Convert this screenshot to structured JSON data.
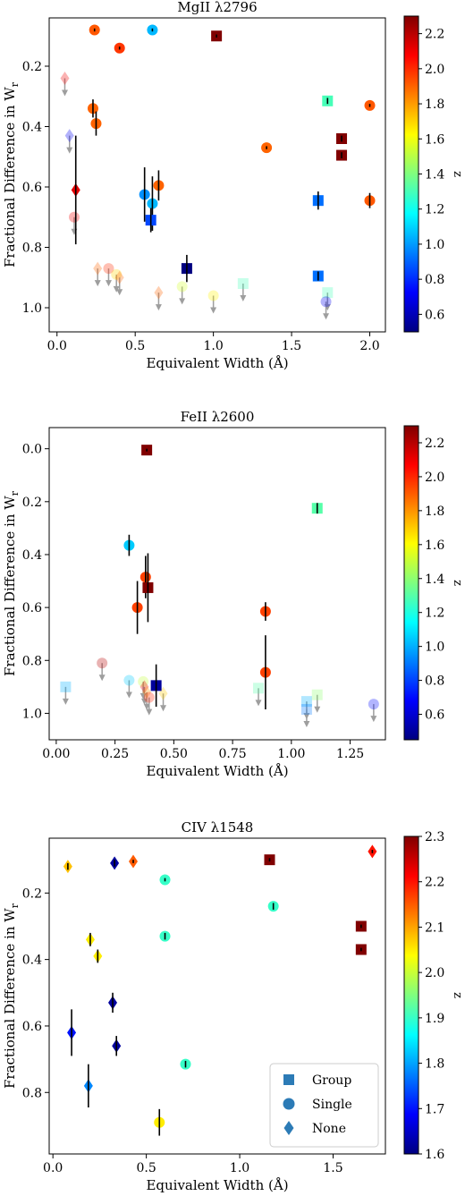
{
  "colors": {
    "grey_arrow": "#9e9e9e",
    "errorbar": "#000000",
    "legend_marker": "#2c7bb6",
    "colormap_jet": [
      "#000080",
      "#0000ff",
      "#007fff",
      "#00ffff",
      "#7fff7f",
      "#ffff00",
      "#ff7f00",
      "#ff0000",
      "#800000"
    ]
  },
  "legend": {
    "items": [
      {
        "marker": "square",
        "label": "Group"
      },
      {
        "marker": "circle",
        "label": "Single"
      },
      {
        "marker": "diamond",
        "label": "None"
      }
    ],
    "placement": "lower-right"
  },
  "chart_data": [
    {
      "type": "scatter",
      "title": "MgII λ2796",
      "xlabel": "Equivalent Width (Å)",
      "ylabel": "Fractional Difference in W_r",
      "xlim": [
        -0.05,
        2.1
      ],
      "ylim": [
        1.08,
        0.04
      ],
      "y_inverted": true,
      "xticks": [
        "0.0",
        "0.5",
        "1.0",
        "1.5",
        "2.0"
      ],
      "xtick_values": [
        0,
        0.5,
        1,
        1.5,
        2
      ],
      "yticks": [
        "0.2",
        "0.4",
        "0.6",
        "0.8",
        "1.0"
      ],
      "ytick_values": [
        0.2,
        0.4,
        0.6,
        0.8,
        1.0
      ],
      "colorbar": {
        "label": "z",
        "range": [
          0.5,
          2.3
        ],
        "ticks": [
          "0.6",
          "0.8",
          "1.0",
          "1.2",
          "1.4",
          "1.6",
          "1.8",
          "2.0",
          "2.2"
        ],
        "tick_values": [
          0.6,
          0.8,
          1.0,
          1.2,
          1.4,
          1.6,
          1.8,
          2.0,
          2.2
        ]
      },
      "grid": false,
      "points": [
        {
          "x": 0.24,
          "y": 0.08,
          "z": 1.92,
          "marker": "circle",
          "err": 0.005
        },
        {
          "x": 0.61,
          "y": 0.08,
          "z": 1.05,
          "marker": "circle",
          "err": 0.005
        },
        {
          "x": 0.4,
          "y": 0.14,
          "z": 1.98,
          "marker": "circle",
          "err": 0.005
        },
        {
          "x": 1.02,
          "y": 0.1,
          "z": 2.3,
          "marker": "square",
          "err": 0.005
        },
        {
          "x": 0.23,
          "y": 0.34,
          "z": 1.9,
          "marker": "circle",
          "err": 0.03
        },
        {
          "x": 0.25,
          "y": 0.39,
          "z": 1.9,
          "marker": "circle",
          "err": 0.04
        },
        {
          "x": 0.12,
          "y": 0.61,
          "z": 2.12,
          "marker": "diamond",
          "err": 0.18
        },
        {
          "x": 0.56,
          "y": 0.625,
          "z": 0.98,
          "marker": "circle",
          "err": 0.09
        },
        {
          "x": 0.61,
          "y": 0.655,
          "z": 1.05,
          "marker": "circle",
          "err": 0.09
        },
        {
          "x": 0.65,
          "y": 0.595,
          "z": 1.9,
          "marker": "circle",
          "err": 0.05
        },
        {
          "x": 0.6,
          "y": 0.71,
          "z": 0.85,
          "marker": "square",
          "err": 0.04
        },
        {
          "x": 0.83,
          "y": 0.87,
          "z": 0.5,
          "marker": "square",
          "err": 0.045
        },
        {
          "x": 1.34,
          "y": 0.47,
          "z": 1.9,
          "marker": "circle",
          "err": 0.005
        },
        {
          "x": 1.73,
          "y": 0.315,
          "z": 1.3,
          "marker": "square",
          "err": 0.01
        },
        {
          "x": 1.82,
          "y": 0.44,
          "z": 2.3,
          "marker": "square",
          "err": 0.01
        },
        {
          "x": 1.82,
          "y": 0.495,
          "z": 2.3,
          "marker": "square",
          "err": 0.01
        },
        {
          "x": 2.0,
          "y": 0.33,
          "z": 1.92,
          "marker": "circle",
          "err": 0.005
        },
        {
          "x": 1.67,
          "y": 0.645,
          "z": 0.92,
          "marker": "square",
          "err": 0.03
        },
        {
          "x": 1.67,
          "y": 0.895,
          "z": 0.92,
          "marker": "square",
          "err": 0.015
        },
        {
          "x": 2.0,
          "y": 0.645,
          "z": 1.92,
          "marker": "circle",
          "err": 0.025
        }
      ],
      "upper_limits": [
        {
          "x": 0.05,
          "y": 0.24,
          "z": 2.1,
          "marker": "diamond"
        },
        {
          "x": 0.08,
          "y": 0.43,
          "z": 0.7,
          "marker": "diamond"
        },
        {
          "x": 0.11,
          "y": 0.7,
          "z": 2.1,
          "marker": "circle"
        },
        {
          "x": 0.26,
          "y": 0.87,
          "z": 1.9,
          "marker": "diamond"
        },
        {
          "x": 0.33,
          "y": 0.87,
          "z": 2.0,
          "marker": "circle"
        },
        {
          "x": 0.38,
          "y": 0.89,
          "z": 1.7,
          "marker": "circle"
        },
        {
          "x": 0.4,
          "y": 0.9,
          "z": 1.9,
          "marker": "diamond"
        },
        {
          "x": 0.65,
          "y": 0.95,
          "z": 1.9,
          "marker": "diamond"
        },
        {
          "x": 0.8,
          "y": 0.93,
          "z": 1.55,
          "marker": "circle"
        },
        {
          "x": 1.0,
          "y": 0.96,
          "z": 1.65,
          "marker": "circle"
        },
        {
          "x": 1.19,
          "y": 0.92,
          "z": 1.3,
          "marker": "square"
        },
        {
          "x": 1.73,
          "y": 0.95,
          "z": 1.3,
          "marker": "square"
        },
        {
          "x": 1.72,
          "y": 0.98,
          "z": 0.7,
          "marker": "circle"
        }
      ]
    },
    {
      "type": "scatter",
      "title": "FeII λ2600",
      "xlabel": "Equivalent Width (Å)",
      "ylabel": "Fractional Difference in W_r",
      "xlim": [
        -0.03,
        1.4
      ],
      "ylim": [
        1.1,
        -0.08
      ],
      "y_inverted": true,
      "xticks": [
        "0.00",
        "0.25",
        "0.50",
        "0.75",
        "1.00",
        "1.25"
      ],
      "xtick_values": [
        0,
        0.25,
        0.5,
        0.75,
        1.0,
        1.25
      ],
      "yticks": [
        "0.0",
        "0.2",
        "0.4",
        "0.6",
        "0.8",
        "1.0"
      ],
      "ytick_values": [
        0,
        0.2,
        0.4,
        0.6,
        0.8,
        1.0
      ],
      "colorbar": {
        "label": "z",
        "range": [
          0.45,
          2.3
        ],
        "ticks": [
          "0.6",
          "0.8",
          "1.0",
          "1.2",
          "1.4",
          "1.6",
          "1.8",
          "2.0",
          "2.2"
        ],
        "tick_values": [
          0.6,
          0.8,
          1.0,
          1.2,
          1.4,
          1.6,
          1.8,
          2.0,
          2.2
        ]
      },
      "grid": false,
      "points": [
        {
          "x": 0.385,
          "y": 0.005,
          "z": 2.3,
          "marker": "square",
          "err": 0.005
        },
        {
          "x": 1.11,
          "y": 0.225,
          "z": 1.3,
          "marker": "square",
          "err": 0.02
        },
        {
          "x": 0.31,
          "y": 0.365,
          "z": 1.05,
          "marker": "circle",
          "err": 0.04
        },
        {
          "x": 0.38,
          "y": 0.485,
          "z": 1.95,
          "marker": "circle",
          "err": 0.08
        },
        {
          "x": 0.39,
          "y": 0.525,
          "z": 2.3,
          "marker": "square",
          "err": 0.13
        },
        {
          "x": 0.345,
          "y": 0.6,
          "z": 1.95,
          "marker": "circle",
          "err": 0.1
        },
        {
          "x": 0.425,
          "y": 0.895,
          "z": 0.5,
          "marker": "square",
          "err": 0.08
        },
        {
          "x": 0.89,
          "y": 0.615,
          "z": 1.95,
          "marker": "circle",
          "err": 0.035
        },
        {
          "x": 0.89,
          "y": 0.845,
          "z": 1.95,
          "marker": "circle",
          "err": 0.14
        }
      ],
      "upper_limits": [
        {
          "x": 0.04,
          "y": 0.9,
          "z": 1.0,
          "marker": "square"
        },
        {
          "x": 0.195,
          "y": 0.81,
          "z": 2.2,
          "marker": "circle"
        },
        {
          "x": 0.31,
          "y": 0.875,
          "z": 1.05,
          "marker": "circle"
        },
        {
          "x": 0.37,
          "y": 0.88,
          "z": 1.5,
          "marker": "circle"
        },
        {
          "x": 0.375,
          "y": 0.9,
          "z": 2.1,
          "marker": "diamond"
        },
        {
          "x": 0.385,
          "y": 0.92,
          "z": 1.8,
          "marker": "diamond"
        },
        {
          "x": 0.395,
          "y": 0.94,
          "z": 2.0,
          "marker": "circle"
        },
        {
          "x": 0.455,
          "y": 0.925,
          "z": 1.7,
          "marker": "diamond"
        },
        {
          "x": 0.86,
          "y": 0.905,
          "z": 1.3,
          "marker": "square"
        },
        {
          "x": 1.065,
          "y": 0.955,
          "z": 1.0,
          "marker": "square"
        },
        {
          "x": 1.065,
          "y": 0.985,
          "z": 0.9,
          "marker": "square"
        },
        {
          "x": 1.11,
          "y": 0.93,
          "z": 1.4,
          "marker": "square"
        },
        {
          "x": 1.35,
          "y": 0.965,
          "z": 0.7,
          "marker": "circle"
        }
      ]
    },
    {
      "type": "scatter",
      "title": "CIV λ1548",
      "xlabel": "Equivalent Width (Å)",
      "ylabel": "Fractional Difference in W_r",
      "xlim": [
        -0.02,
        1.78
      ],
      "ylim": [
        0.985,
        0.035
      ],
      "y_inverted": true,
      "xticks": [
        "0.0",
        "0.5",
        "1.0",
        "1.5"
      ],
      "xtick_values": [
        0,
        0.5,
        1.0,
        1.5
      ],
      "yticks": [
        "0.2",
        "0.4",
        "0.6",
        "0.8"
      ],
      "ytick_values": [
        0.2,
        0.4,
        0.6,
        0.8
      ],
      "colorbar": {
        "label": "z",
        "range": [
          1.6,
          2.3
        ],
        "ticks": [
          "1.6",
          "1.7",
          "1.8",
          "1.9",
          "2.0",
          "2.1",
          "2.2",
          "2.3"
        ],
        "tick_values": [
          1.6,
          1.7,
          1.8,
          1.9,
          2.0,
          2.1,
          2.2,
          2.3
        ]
      },
      "grid": false,
      "points": [
        {
          "x": 0.08,
          "y": 0.12,
          "z": 2.08,
          "marker": "diamond",
          "err": 0.01
        },
        {
          "x": 0.33,
          "y": 0.11,
          "z": 1.62,
          "marker": "diamond",
          "err": 0.01
        },
        {
          "x": 0.43,
          "y": 0.105,
          "z": 2.15,
          "marker": "diamond",
          "err": 0.005
        },
        {
          "x": 0.6,
          "y": 0.16,
          "z": 1.9,
          "marker": "circle",
          "err": 0.005
        },
        {
          "x": 1.16,
          "y": 0.1,
          "z": 2.3,
          "marker": "square",
          "err": 0.005
        },
        {
          "x": 1.71,
          "y": 0.075,
          "z": 2.2,
          "marker": "diamond",
          "err": 0.005
        },
        {
          "x": 1.18,
          "y": 0.24,
          "z": 1.9,
          "marker": "circle",
          "err": 0.01
        },
        {
          "x": 0.2,
          "y": 0.34,
          "z": 2.05,
          "marker": "diamond",
          "err": 0.02
        },
        {
          "x": 0.6,
          "y": 0.33,
          "z": 1.9,
          "marker": "circle",
          "err": 0.01
        },
        {
          "x": 1.65,
          "y": 0.3,
          "z": 2.3,
          "marker": "square",
          "err": 0.005
        },
        {
          "x": 1.65,
          "y": 0.37,
          "z": 2.3,
          "marker": "square",
          "err": 0.005
        },
        {
          "x": 0.24,
          "y": 0.39,
          "z": 2.05,
          "marker": "diamond",
          "err": 0.02
        },
        {
          "x": 0.32,
          "y": 0.53,
          "z": 1.62,
          "marker": "diamond",
          "err": 0.03
        },
        {
          "x": 0.1,
          "y": 0.62,
          "z": 1.7,
          "marker": "diamond",
          "err": 0.07
        },
        {
          "x": 0.34,
          "y": 0.66,
          "z": 1.62,
          "marker": "diamond",
          "err": 0.03
        },
        {
          "x": 0.71,
          "y": 0.715,
          "z": 1.9,
          "marker": "circle",
          "err": 0.01
        },
        {
          "x": 0.19,
          "y": 0.78,
          "z": 1.78,
          "marker": "diamond",
          "err": 0.065
        },
        {
          "x": 0.57,
          "y": 0.89,
          "z": 2.05,
          "marker": "circle",
          "err": 0.04
        }
      ],
      "upper_limits": []
    }
  ]
}
